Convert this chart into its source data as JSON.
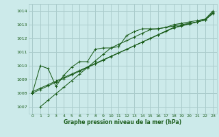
{
  "bg_color": "#cceaea",
  "grid_color": "#aacccc",
  "line_color": "#1a5c1a",
  "xlabel": "Graphe pression niveau de la mer (hPa)",
  "ylim": [
    1006.5,
    1014.5
  ],
  "xlim": [
    -0.5,
    23.5
  ],
  "yticks": [
    1007,
    1008,
    1009,
    1010,
    1011,
    1012,
    1013,
    1014
  ],
  "xticks": [
    0,
    1,
    2,
    3,
    4,
    5,
    6,
    7,
    8,
    9,
    10,
    11,
    12,
    13,
    14,
    15,
    16,
    17,
    18,
    19,
    20,
    21,
    22,
    23
  ],
  "series": [
    {
      "x": [
        0,
        1,
        2,
        3,
        4,
        5,
        6,
        7,
        8,
        9,
        10,
        11,
        12,
        13,
        14,
        15,
        16,
        17,
        18,
        19,
        20,
        21,
        22,
        23
      ],
      "y": [
        1008.0,
        1010.0,
        1009.8,
        1008.5,
        1009.3,
        1009.9,
        1010.3,
        1010.3,
        1011.2,
        1011.3,
        1011.3,
        1011.4,
        1012.2,
        1012.5,
        1012.7,
        1012.7,
        1012.7,
        1012.8,
        1013.0,
        1013.1,
        1013.2,
        1013.3,
        1013.4,
        1014.0
      ]
    },
    {
      "x": [
        0,
        1,
        2,
        3,
        4,
        5,
        6,
        7,
        8,
        9,
        10,
        11,
        12,
        13,
        14,
        15,
        16,
        17,
        18,
        19,
        20,
        21,
        22,
        23
      ],
      "y": [
        1008.0,
        1008.27,
        1008.53,
        1008.8,
        1009.07,
        1009.33,
        1009.6,
        1009.87,
        1010.13,
        1010.4,
        1010.67,
        1010.93,
        1011.2,
        1011.47,
        1011.73,
        1012.0,
        1012.27,
        1012.53,
        1012.8,
        1012.93,
        1013.07,
        1013.2,
        1013.33,
        1013.87
      ]
    },
    {
      "x": [
        0,
        1,
        2,
        3,
        4,
        5,
        6,
        7,
        8,
        9,
        10,
        11,
        12,
        13,
        14,
        15,
        16,
        17,
        18,
        19,
        20,
        21,
        22,
        23
      ],
      "y": [
        1008.1,
        1008.36,
        1008.62,
        1008.88,
        1009.14,
        1009.4,
        1009.65,
        1009.91,
        1010.17,
        1010.43,
        1010.69,
        1010.95,
        1011.2,
        1011.46,
        1011.72,
        1011.98,
        1012.24,
        1012.5,
        1012.76,
        1012.9,
        1013.05,
        1013.2,
        1013.35,
        1013.8
      ]
    },
    {
      "x": [
        1,
        2,
        3,
        4,
        5,
        6,
        7,
        8,
        9,
        10,
        11,
        12,
        13,
        14,
        15,
        16,
        17,
        18,
        19,
        20,
        21,
        22,
        23
      ],
      "y": [
        1007.0,
        1007.48,
        1007.96,
        1008.43,
        1008.91,
        1009.39,
        1009.87,
        1010.35,
        1010.83,
        1011.3,
        1011.57,
        1011.83,
        1012.1,
        1012.37,
        1012.63,
        1012.7,
        1012.8,
        1012.9,
        1013.0,
        1013.1,
        1013.2,
        1013.35,
        1013.9
      ]
    }
  ]
}
